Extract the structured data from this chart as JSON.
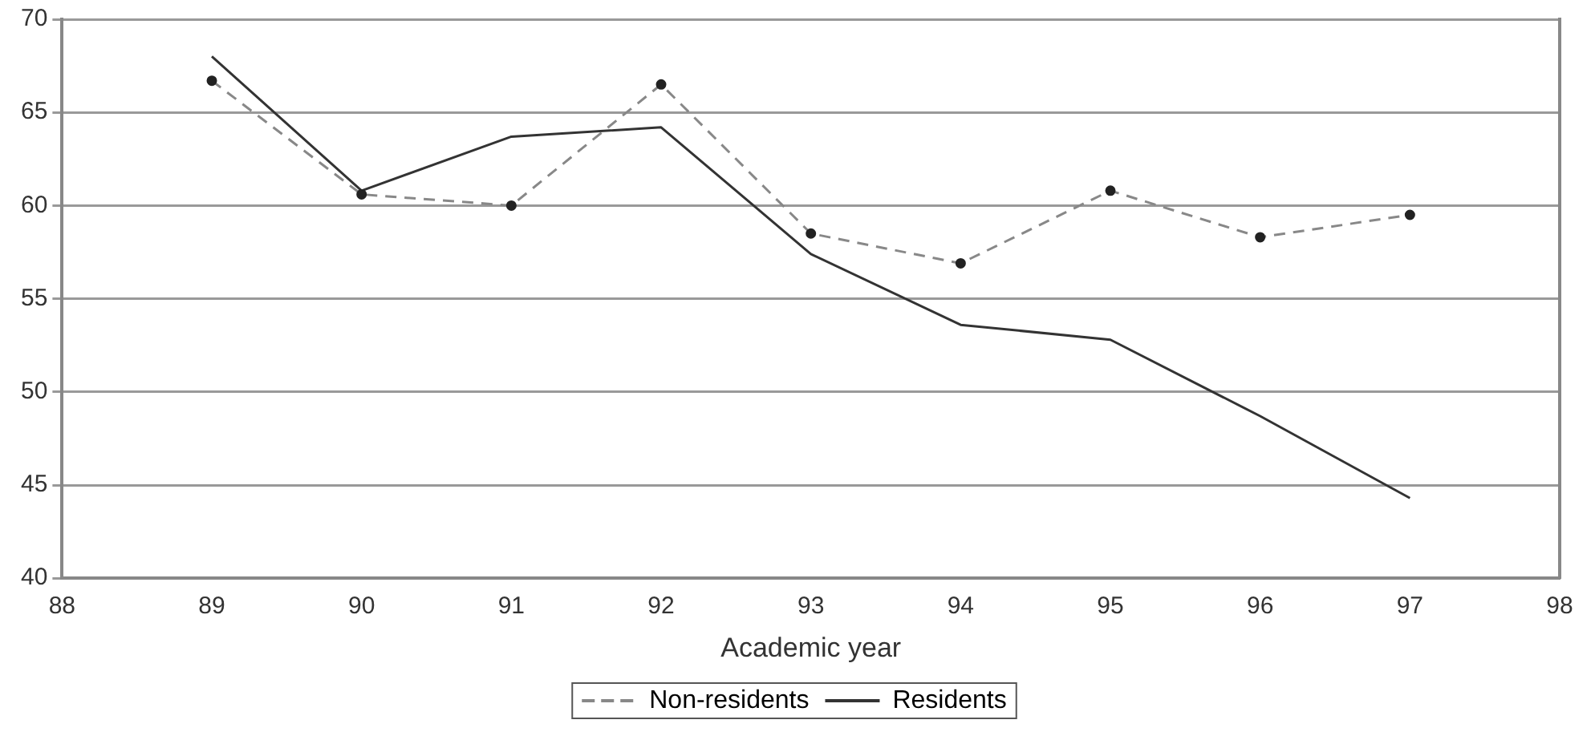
{
  "chart_data": {
    "type": "line",
    "xlabel": "Academic year",
    "x": [
      89,
      90,
      91,
      92,
      93,
      94,
      95,
      96,
      97
    ],
    "series": [
      {
        "name": "Non-residents",
        "color": "#888888",
        "values": [
          66.7,
          60.6,
          60.0,
          66.5,
          58.5,
          56.9,
          60.8,
          58.3,
          59.5
        ],
        "line_style": "dashed",
        "marker": "circle"
      },
      {
        "name": "Residents",
        "color": "#333333",
        "values": [
          68.0,
          60.8,
          63.7,
          64.2,
          57.4,
          53.6,
          52.8,
          48.7,
          44.3
        ],
        "line_style": "solid",
        "marker": "none"
      }
    ],
    "xlim": [
      88,
      98
    ],
    "xticks": [
      88,
      89,
      90,
      91,
      92,
      93,
      94,
      95,
      96,
      97,
      98
    ],
    "ylim": [
      40,
      70
    ],
    "yticks": [
      40,
      45,
      50,
      55,
      60,
      65,
      70
    ],
    "grid": "y",
    "legend": "bottom"
  }
}
